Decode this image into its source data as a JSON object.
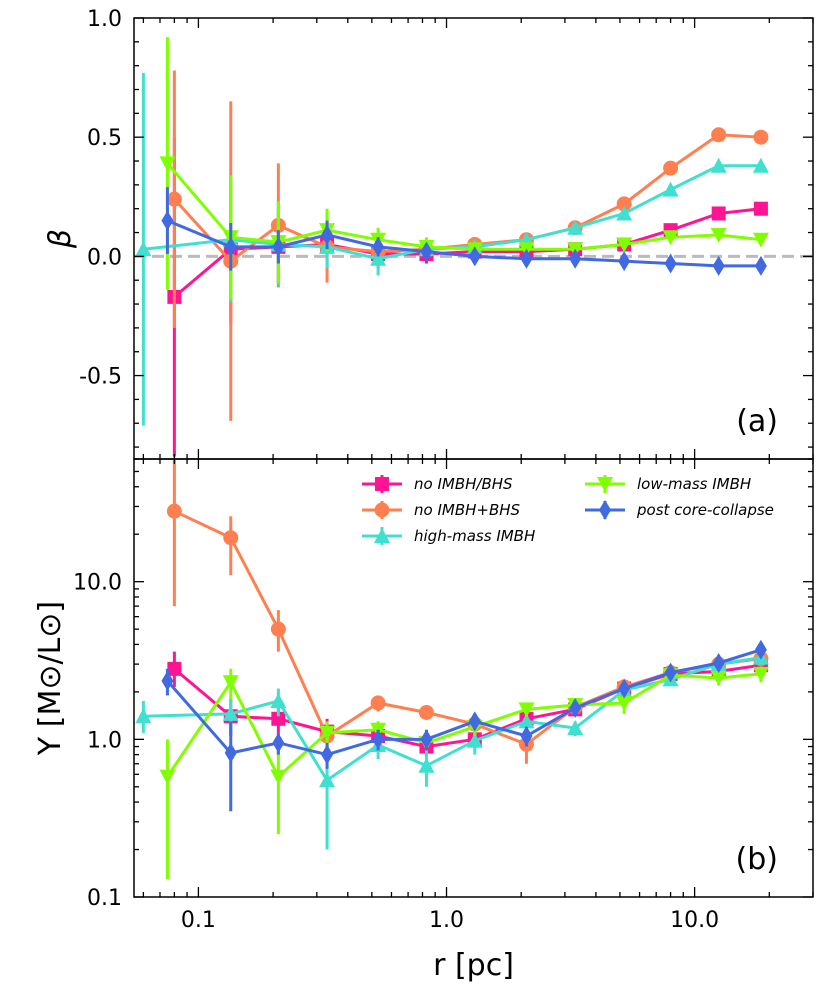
{
  "chart_data": [
    {
      "panel": "a",
      "type": "line",
      "panel_label": "(a)",
      "xlabel": "",
      "ylabel": "β",
      "xscale": "log",
      "xlim": [
        0.055,
        30
      ],
      "ylim": [
        -0.85,
        1.0
      ],
      "yticks": [
        -0.5,
        0.0,
        0.5,
        1.0
      ],
      "ytick_labels": [
        "-0.5",
        "0.0",
        "0.5",
        "1.0"
      ],
      "reference_line": {
        "y": 0.0,
        "style": "dashed",
        "color": "#bbbbbb"
      },
      "series": [
        {
          "key": "noimbh",
          "color": "#ff1493",
          "marker": "square",
          "x": [
            0.08,
            0.135,
            0.21,
            0.33,
            0.53,
            0.83,
            1.3,
            2.1,
            3.3,
            5.2,
            8.0,
            12.5,
            18.5
          ],
          "y": [
            -0.17,
            0.03,
            0.04,
            0.05,
            0.01,
            0.01,
            0.02,
            0.02,
            0.03,
            0.05,
            0.11,
            0.18,
            0.2
          ],
          "err": [
            0.67,
            0.31,
            0.15,
            0.11,
            0.06,
            0.04,
            0.02,
            0.02,
            0.02,
            0.02,
            0.02,
            0.02,
            0.02
          ]
        },
        {
          "key": "nobhs",
          "color": "#ff7f50",
          "marker": "circle",
          "x": [
            0.08,
            0.135,
            0.21,
            0.33,
            0.53,
            0.83,
            1.3,
            2.1,
            3.3,
            5.2,
            8.0,
            12.5,
            18.5
          ],
          "y": [
            0.24,
            -0.02,
            0.13,
            0.04,
            0.02,
            0.03,
            0.05,
            0.07,
            0.12,
            0.22,
            0.37,
            0.51,
            0.5
          ],
          "err": [
            0.54,
            0.67,
            0.26,
            0.15,
            0.07,
            0.04,
            0.03,
            0.02,
            0.02,
            0.02,
            0.02,
            0.02,
            0.02
          ]
        },
        {
          "key": "himbh",
          "color": "#40e0d0",
          "marker": "triangle-up",
          "x": [
            0.06,
            0.135,
            0.21,
            0.33,
            0.53,
            0.83,
            1.3,
            2.1,
            3.3,
            5.2,
            8.0,
            12.5,
            18.5
          ],
          "y": [
            0.03,
            0.07,
            0.05,
            0.04,
            -0.01,
            0.03,
            0.04,
            0.07,
            0.12,
            0.18,
            0.28,
            0.38,
            0.38
          ],
          "err": [
            0.74,
            0.26,
            0.17,
            0.09,
            0.07,
            0.04,
            0.03,
            0.02,
            0.02,
            0.02,
            0.02,
            0.02,
            0.02
          ]
        },
        {
          "key": "limbh",
          "color": "#7fff00",
          "marker": "triangle-down",
          "x": [
            0.075,
            0.135,
            0.21,
            0.33,
            0.53,
            0.83,
            1.3,
            2.1,
            3.3,
            5.2,
            8.0,
            12.5,
            18.5
          ],
          "y": [
            0.39,
            0.08,
            0.06,
            0.11,
            0.07,
            0.04,
            0.03,
            0.03,
            0.03,
            0.05,
            0.08,
            0.09,
            0.07
          ],
          "err": [
            0.53,
            0.26,
            0.17,
            0.09,
            0.05,
            0.04,
            0.02,
            0.02,
            0.02,
            0.02,
            0.02,
            0.02,
            0.02
          ]
        },
        {
          "key": "pcc",
          "color": "#4169e1",
          "marker": "diamond",
          "x": [
            0.075,
            0.135,
            0.21,
            0.33,
            0.53,
            0.83,
            1.3,
            2.1,
            3.3,
            5.2,
            8.0,
            12.5,
            18.5
          ],
          "y": [
            0.15,
            0.04,
            0.04,
            0.09,
            0.04,
            0.02,
            0.0,
            -0.01,
            -0.01,
            -0.02,
            -0.03,
            -0.04,
            -0.04
          ],
          "err": [
            0.14,
            0.1,
            0.07,
            0.06,
            0.04,
            0.02,
            0.02,
            0.02,
            0.02,
            0.02,
            0.02,
            0.02,
            0.02
          ]
        }
      ]
    },
    {
      "panel": "b",
      "type": "line",
      "panel_label": "(b)",
      "xlabel": "r [pc]",
      "ylabel": "Υ [M⊙/L⊙]",
      "xscale": "log",
      "yscale": "log",
      "xlim": [
        0.055,
        30
      ],
      "ylim": [
        0.1,
        60
      ],
      "xticks": [
        0.1,
        1.0,
        10.0
      ],
      "xtick_labels": [
        "0.1",
        "1.0",
        "10.0"
      ],
      "yticks": [
        0.1,
        1.0,
        10.0
      ],
      "ytick_labels": [
        "0.1",
        "1.0",
        "10.0"
      ],
      "legend": {
        "placement": "top-right",
        "entries": [
          {
            "key": "noimbh",
            "label": "no IMBH/BHS"
          },
          {
            "key": "limbh",
            "label": "low-mass IMBH"
          },
          {
            "key": "nobhs",
            "label": "no IMBH+BHS"
          },
          {
            "key": "pcc",
            "label": "post core-collapse"
          },
          {
            "key": "himbh",
            "label": "high-mass IMBH"
          }
        ]
      },
      "series": [
        {
          "key": "noimbh",
          "color": "#ff1493",
          "marker": "square",
          "x": [
            0.08,
            0.135,
            0.21,
            0.33,
            0.53,
            0.83,
            1.3,
            2.1,
            3.3,
            5.2,
            8.0,
            12.5,
            18.5
          ],
          "y": [
            2.8,
            1.4,
            1.35,
            1.12,
            1.05,
            0.9,
            1.0,
            1.35,
            1.55,
            2.1,
            2.6,
            2.7,
            2.95
          ],
          "lo": [
            2.15,
            1.05,
            1.1,
            0.9,
            0.9,
            0.8,
            0.9,
            1.25,
            1.45,
            2.0,
            2.4,
            2.45,
            2.7
          ],
          "hi": [
            3.6,
            1.8,
            1.6,
            1.35,
            1.2,
            1.0,
            1.1,
            1.45,
            1.65,
            2.25,
            2.8,
            2.95,
            3.2
          ]
        },
        {
          "key": "nobhs",
          "color": "#ff7f50",
          "marker": "circle",
          "x": [
            0.08,
            0.135,
            0.21,
            0.33,
            0.53,
            0.83,
            1.3,
            2.1,
            3.3,
            5.2,
            8.0,
            12.5,
            18.5
          ],
          "y": [
            28.0,
            19.0,
            5.0,
            1.05,
            1.7,
            1.48,
            1.25,
            0.93,
            1.6,
            2.15,
            2.65,
            3.0,
            3.25
          ],
          "lo": [
            7.0,
            11.0,
            3.6,
            0.85,
            1.5,
            1.35,
            1.15,
            0.7,
            1.5,
            2.0,
            2.5,
            2.8,
            3.0
          ],
          "hi": [
            60.0,
            26.0,
            6.6,
            1.25,
            1.9,
            1.6,
            1.35,
            1.15,
            1.7,
            2.3,
            2.8,
            3.2,
            3.5
          ]
        },
        {
          "key": "himbh",
          "color": "#40e0d0",
          "marker": "triangle-up",
          "x": [
            0.06,
            0.135,
            0.21,
            0.33,
            0.53,
            0.83,
            1.3,
            2.1,
            3.3,
            5.2,
            8.0,
            12.5,
            18.5
          ],
          "y": [
            1.4,
            1.45,
            1.75,
            0.55,
            0.92,
            0.68,
            0.98,
            1.3,
            1.18,
            2.05,
            2.4,
            3.0,
            3.3
          ],
          "lo": [
            1.1,
            1.1,
            1.4,
            0.2,
            0.75,
            0.5,
            0.8,
            1.15,
            1.05,
            1.9,
            2.2,
            2.7,
            3.0
          ],
          "hi": [
            1.75,
            1.8,
            2.1,
            0.8,
            1.1,
            0.86,
            1.15,
            1.45,
            1.3,
            2.2,
            2.6,
            3.3,
            3.6
          ]
        },
        {
          "key": "limbh",
          "color": "#7fff00",
          "marker": "triangle-down",
          "x": [
            0.075,
            0.135,
            0.21,
            0.33,
            0.53,
            0.83,
            1.3,
            2.1,
            3.3,
            5.2,
            8.0,
            12.5,
            18.5
          ],
          "y": [
            0.58,
            2.3,
            0.58,
            1.1,
            1.15,
            0.95,
            1.2,
            1.55,
            1.65,
            1.7,
            2.55,
            2.45,
            2.6
          ],
          "lo": [
            0.13,
            1.8,
            0.25,
            0.9,
            1.0,
            0.85,
            1.05,
            1.4,
            1.5,
            1.45,
            2.35,
            2.2,
            2.3
          ],
          "hi": [
            1.0,
            2.8,
            0.9,
            1.3,
            1.3,
            1.05,
            1.35,
            1.7,
            1.8,
            1.95,
            2.75,
            2.7,
            2.9
          ]
        },
        {
          "key": "pcc",
          "color": "#4169e1",
          "marker": "diamond",
          "x": [
            0.075,
            0.135,
            0.21,
            0.33,
            0.53,
            0.83,
            1.3,
            2.1,
            3.3,
            5.2,
            8.0,
            12.5,
            18.5
          ],
          "y": [
            2.35,
            0.82,
            0.95,
            0.8,
            1.0,
            1.0,
            1.3,
            1.05,
            1.58,
            2.1,
            2.65,
            3.05,
            3.7
          ],
          "lo": [
            1.9,
            0.35,
            0.8,
            0.65,
            0.85,
            0.85,
            1.15,
            0.9,
            1.45,
            1.95,
            2.45,
            2.8,
            3.4
          ],
          "hi": [
            2.8,
            1.3,
            1.1,
            0.95,
            1.15,
            1.15,
            1.45,
            1.2,
            1.7,
            2.25,
            2.85,
            3.3,
            4.0
          ]
        }
      ]
    }
  ]
}
